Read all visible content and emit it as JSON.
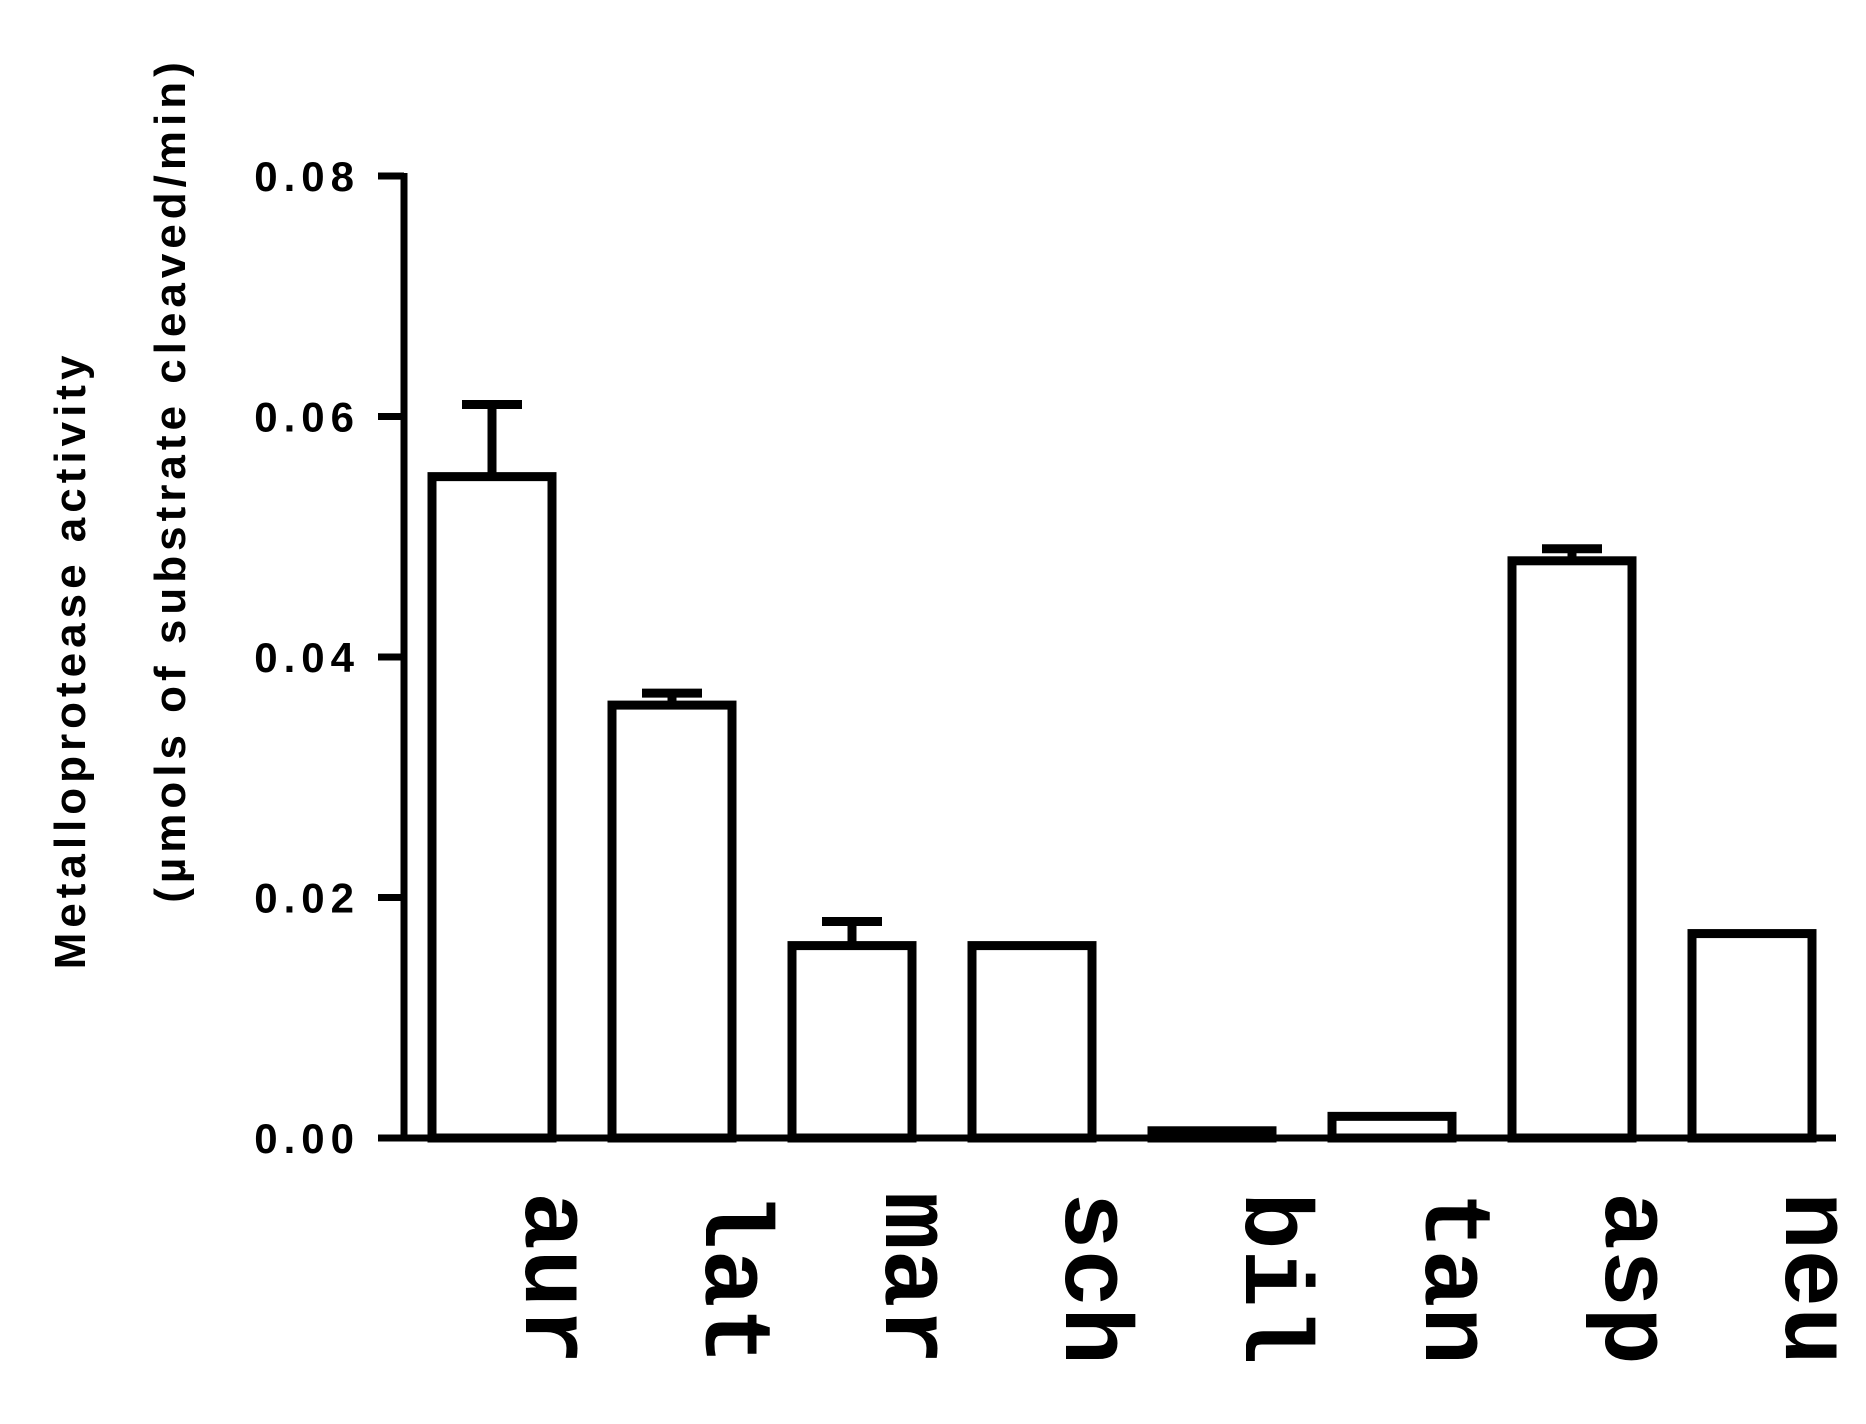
{
  "chart_data": {
    "type": "bar",
    "title": "",
    "xlabel": "",
    "ylabel": [
      "Metalloprotease activity",
      "(µmols of substrate cleaved/min)"
    ],
    "categories": [
      "aur",
      "lat",
      "mar",
      "sch",
      "bil",
      "tan",
      "asp",
      "neu"
    ],
    "values": [
      0.055,
      0.036,
      0.016,
      0.016,
      0.0006,
      0.0018,
      0.048,
      0.017
    ],
    "error_upper": [
      0.061,
      0.037,
      0.018,
      null,
      null,
      null,
      0.049,
      null
    ],
    "ylim": [
      0,
      0.08
    ],
    "yticks": [
      "0.00",
      "0.02",
      "0.04",
      "0.06",
      "0.08"
    ],
    "grid": false,
    "legend": "none",
    "bar_fill": "#ffffff",
    "bar_stroke": "#000000"
  }
}
